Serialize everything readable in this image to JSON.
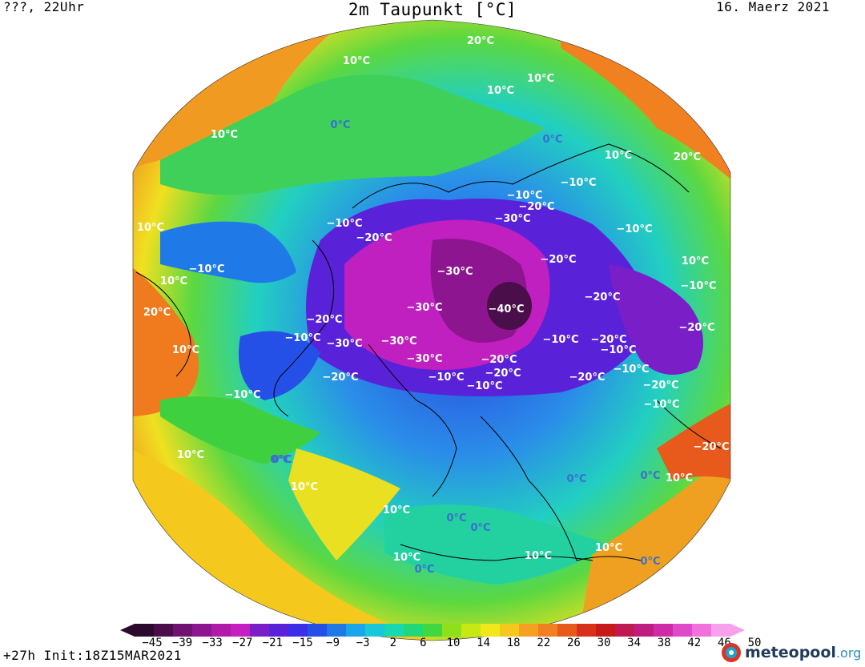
{
  "header": {
    "left": "???, 22Uhr",
    "title": "2m Taupunkt [°C]",
    "right": "16. Maerz 2021"
  },
  "footer": {
    "left": "+27h Init:18Z15MAR2021"
  },
  "logo": {
    "name": "meteopool",
    "suffix": ".org"
  },
  "colorbar": {
    "ticks": [
      "−45",
      "−39",
      "−33",
      "−27",
      "−21",
      "−15",
      "−9",
      "−3",
      "2",
      "6",
      "10",
      "14",
      "18",
      "22",
      "26",
      "30",
      "34",
      "38",
      "42",
      "46",
      "50"
    ],
    "colors": [
      "#2b0a2e",
      "#4a0e4a",
      "#6f1270",
      "#8e1590",
      "#b01aa8",
      "#c41fc0",
      "#7a1ec8",
      "#5a22d8",
      "#3b2ee6",
      "#2450e8",
      "#1f7ae8",
      "#1aa6e8",
      "#19c8d8",
      "#17d8b0",
      "#20d878",
      "#3fd840",
      "#8ee01a",
      "#c8e814",
      "#f0e81a",
      "#f5c81e",
      "#f5a020",
      "#f08020",
      "#e85a1c",
      "#d8301a",
      "#c81818",
      "#c01850",
      "#c01c80",
      "#d02aa8",
      "#e04ac8",
      "#f070dc",
      "#f8a0ec"
    ]
  },
  "map_labels": [
    {
      "text": "20°C",
      "cold": false
    },
    {
      "text": "10°C",
      "cold": false
    },
    {
      "text": "10°C",
      "cold": false
    },
    {
      "text": "10°C",
      "cold": false
    },
    {
      "text": "10°C",
      "cold": false
    },
    {
      "text": "0°C",
      "cold": true
    },
    {
      "text": "0°C",
      "cold": true
    },
    {
      "text": "10°C",
      "cold": false
    },
    {
      "text": "20°C",
      "cold": false
    },
    {
      "text": "−10°C",
      "cold": false
    },
    {
      "text": "−20°C",
      "cold": false
    },
    {
      "text": "−10°C",
      "cold": false
    },
    {
      "text": "−30°C",
      "cold": false
    },
    {
      "text": "−10°C",
      "cold": false
    },
    {
      "text": "−20°C",
      "cold": false
    },
    {
      "text": "−10°C",
      "cold": false
    },
    {
      "text": "10°C",
      "cold": false
    },
    {
      "text": "10°C",
      "cold": false
    },
    {
      "text": "−10°C",
      "cold": false
    },
    {
      "text": "10°C",
      "cold": false
    },
    {
      "text": "−30°C",
      "cold": false
    },
    {
      "text": "−20°C",
      "cold": false
    },
    {
      "text": "−10°C",
      "cold": false
    },
    {
      "text": "20°C",
      "cold": false
    },
    {
      "text": "−30°C",
      "cold": false
    },
    {
      "text": "−40°C",
      "cold": false
    },
    {
      "text": "−20°C",
      "cold": false
    },
    {
      "text": "−20°C",
      "cold": false
    },
    {
      "text": "10°C",
      "cold": false
    },
    {
      "text": "−30°C",
      "cold": false
    },
    {
      "text": "−30°C",
      "cold": false
    },
    {
      "text": "−10°C",
      "cold": false
    },
    {
      "text": "−20°C",
      "cold": false
    },
    {
      "text": "−10°C",
      "cold": false
    },
    {
      "text": "−20°C",
      "cold": false
    },
    {
      "text": "−30°C",
      "cold": false
    },
    {
      "text": "−20°C",
      "cold": false
    },
    {
      "text": "−10°C",
      "cold": false
    },
    {
      "text": "−20°C",
      "cold": false
    },
    {
      "text": "−20°C",
      "cold": false
    },
    {
      "text": "−10°C",
      "cold": false
    },
    {
      "text": "−10°C",
      "cold": false
    },
    {
      "text": "−20°C",
      "cold": false
    },
    {
      "text": "−10°C",
      "cold": false
    },
    {
      "text": "−10°C",
      "cold": false
    },
    {
      "text": "0°C",
      "cold": true
    },
    {
      "text": "−20°C",
      "cold": false
    },
    {
      "text": "−10°C",
      "cold": false
    },
    {
      "text": "10°C",
      "cold": false
    },
    {
      "text": "0°C",
      "cold": true
    },
    {
      "text": "10°C",
      "cold": false
    },
    {
      "text": "−20°C",
      "cold": false
    },
    {
      "text": "10°C",
      "cold": false
    },
    {
      "text": "0°C",
      "cold": true
    },
    {
      "text": "10°C",
      "cold": false
    },
    {
      "text": "10°C",
      "cold": false
    },
    {
      "text": "10°C",
      "cold": false
    },
    {
      "text": "0°C",
      "cold": true
    },
    {
      "text": "10°C",
      "cold": false
    },
    {
      "text": "0°C",
      "cold": true
    },
    {
      "text": "0°C",
      "cold": true
    },
    {
      "text": "0°C",
      "cold": true
    },
    {
      "text": "0°C",
      "cold": true
    }
  ]
}
